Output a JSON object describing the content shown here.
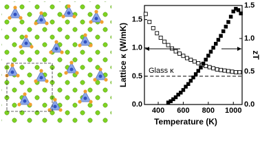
{
  "chart_data": {
    "type": "scatter",
    "xlabel": "Temperature (K)",
    "ylabel": "Lattice κ (W/mK)",
    "y2label": "zT",
    "xlim": [
      290,
      1070
    ],
    "xticks": [
      400,
      600,
      800,
      1000
    ],
    "ylim": [
      0,
      1.75
    ],
    "yticks": [
      {
        "value": 0,
        "label": "0.0"
      },
      {
        "value": 0.5,
        "label": "0.5"
      },
      {
        "value": 1,
        "label": "1.0"
      },
      {
        "value": 1.5,
        "label": "1.5"
      }
    ],
    "y2lim": [
      0,
      1.5
    ],
    "y2ticks": [
      {
        "value": 0,
        "label": "0.0"
      },
      {
        "value": 0.5,
        "label": "0.5"
      },
      {
        "value": 1,
        "label": "1.0"
      },
      {
        "value": 1.5,
        "label": "1.5"
      }
    ],
    "reference_lines": [
      {
        "value": 0.5,
        "label": "Glass κ",
        "style": "dashed"
      }
    ],
    "series": [
      {
        "color": "#000000",
        "marker": "open",
        "axis": "y",
        "x": [
          300,
          330,
          360,
          390,
          420,
          450,
          480,
          510,
          540,
          570,
          600,
          630,
          660,
          690,
          720,
          750,
          780,
          810,
          840,
          870,
          900,
          930,
          960,
          990,
          1020,
          1050
        ],
        "values": [
          1.6,
          1.46,
          1.35,
          1.26,
          1.18,
          1.11,
          1.05,
          0.99,
          0.94,
          0.9,
          0.86,
          0.82,
          0.79,
          0.76,
          0.73,
          0.7,
          0.68,
          0.66,
          0.64,
          0.62,
          0.61,
          0.6,
          0.59,
          0.58,
          0.57,
          0.57
        ]
      },
      {
        "color": "#000000",
        "marker": "filled",
        "axis": "y2",
        "x": [
          480,
          500,
          520,
          540,
          560,
          580,
          600,
          620,
          640,
          660,
          680,
          700,
          720,
          740,
          760,
          780,
          800,
          820,
          840,
          860,
          880,
          900,
          920,
          940,
          960,
          980,
          1000,
          1020,
          1040,
          1060
        ],
        "values": [
          0.03,
          0.05,
          0.08,
          0.11,
          0.15,
          0.18,
          0.22,
          0.27,
          0.31,
          0.36,
          0.41,
          0.46,
          0.51,
          0.56,
          0.62,
          0.68,
          0.74,
          0.8,
          0.86,
          0.92,
          0.98,
          1.04,
          1.11,
          1.18,
          1.25,
          1.33,
          1.41,
          1.45,
          1.43,
          1.38
        ]
      }
    ]
  }
}
